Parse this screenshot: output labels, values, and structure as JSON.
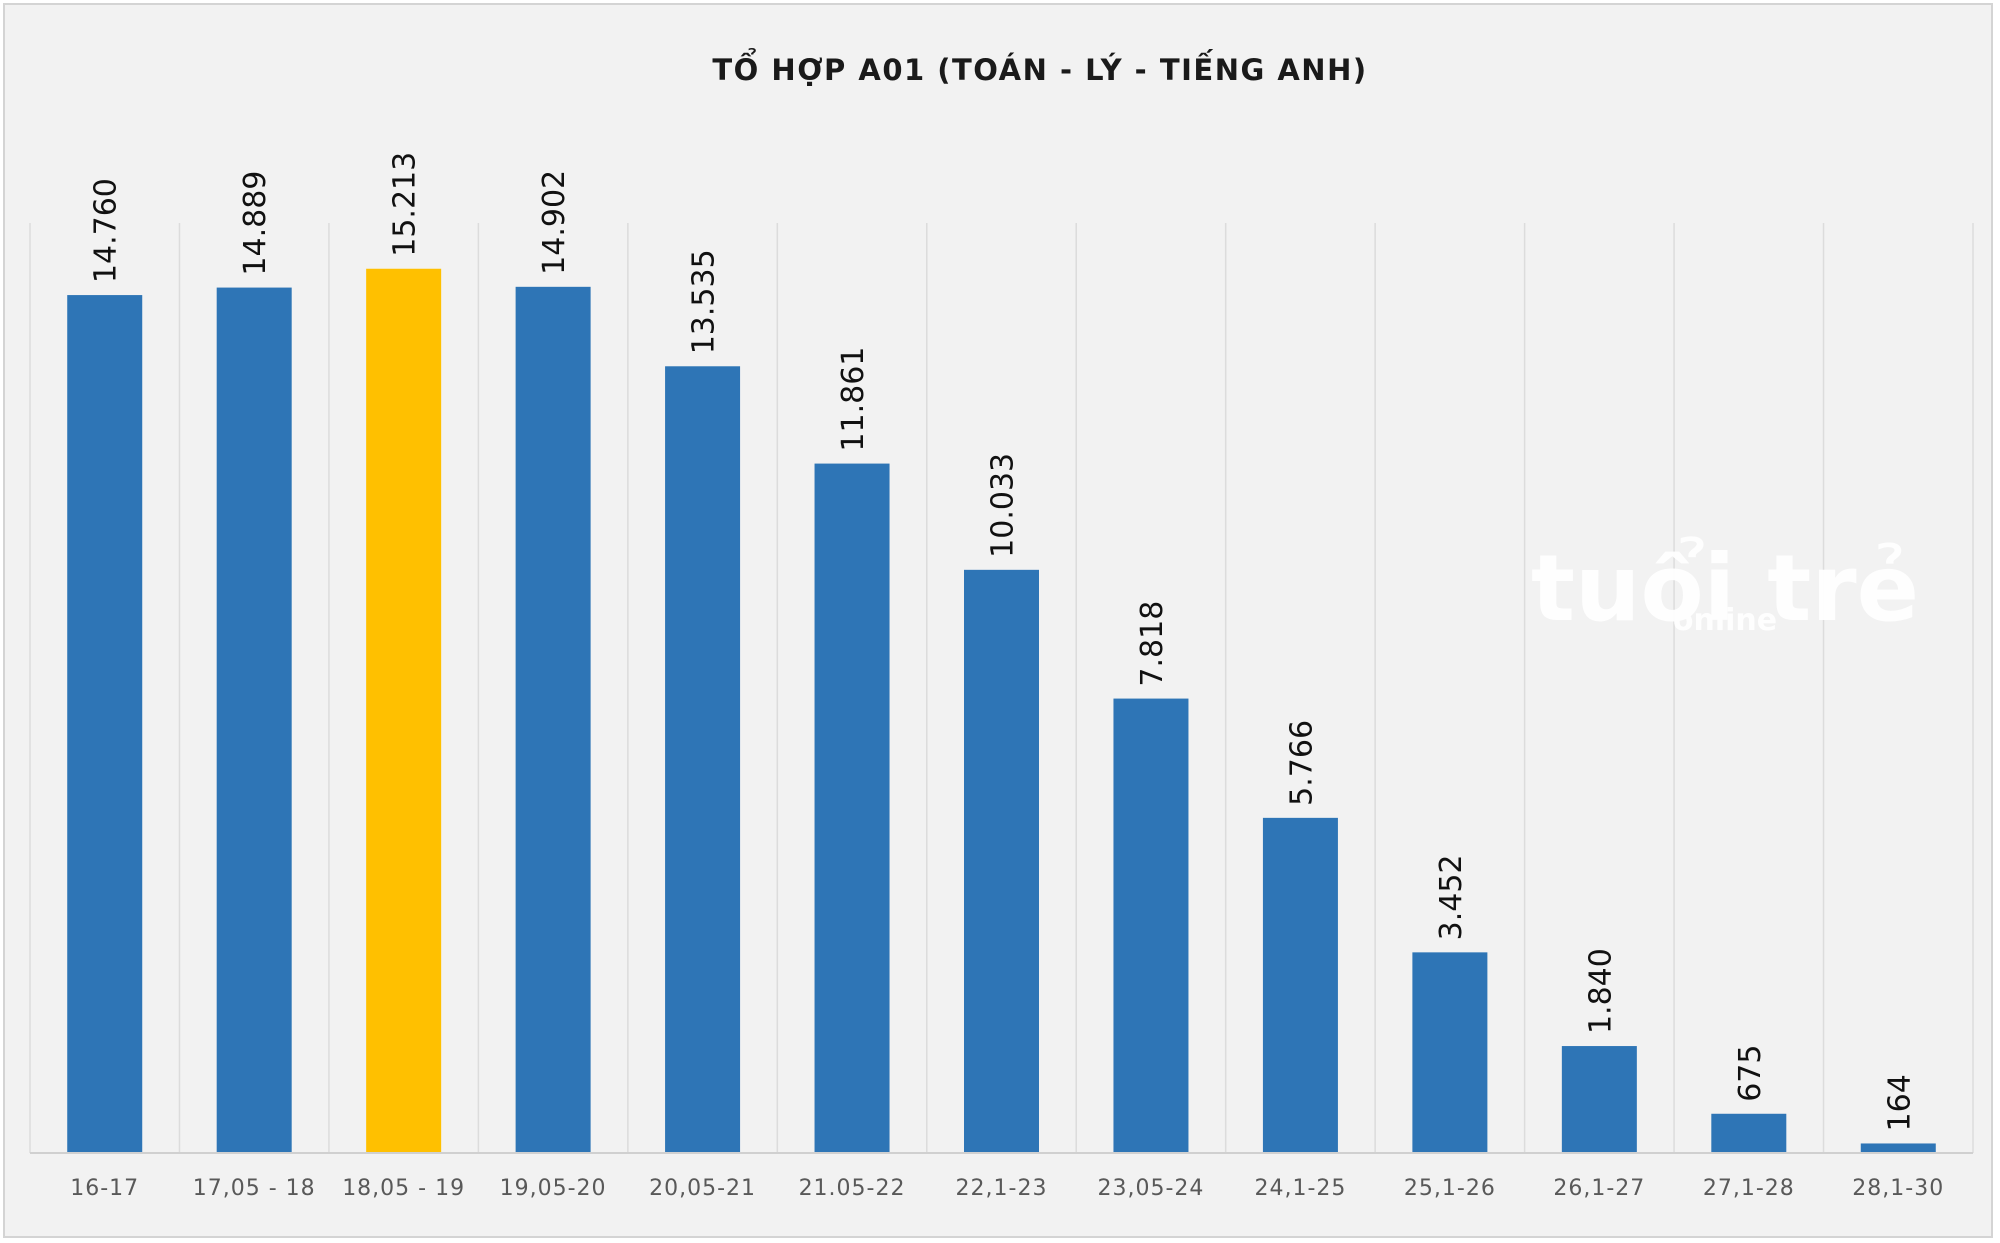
{
  "chart_data": {
    "type": "bar",
    "title": "TỔ HỢP A01 (TOÁN - LÝ - TIẾNG ANH)",
    "categories": [
      "16-17",
      "17,05 - 18",
      "18,05 - 19",
      "19,05-20",
      "20,05-21",
      "21.05-22",
      "22,1-23",
      "23,05-24",
      "24,1-25",
      "25,1-26",
      "26,1-27",
      "27,1-28",
      "28,1-30"
    ],
    "values": [
      14760,
      14889,
      15213,
      14902,
      13535,
      11861,
      10033,
      7818,
      5766,
      3452,
      1840,
      675,
      164
    ],
    "value_labels": [
      "14.760",
      "14.889",
      "15.213",
      "14.902",
      "13.535",
      "11.861",
      "10.033",
      "7.818",
      "5.766",
      "3.452",
      "1.840",
      "675",
      "164"
    ],
    "ylim": [
      0,
      16000
    ],
    "grid": "vertical category separators",
    "legend": "none",
    "bar_color": "#2e75b6",
    "highlight_index": 2,
    "highlight_color": "#ffc000",
    "background_color": "#f2f2f2"
  },
  "watermark": {
    "main": "tuổi trẻ",
    "sub": "online"
  }
}
